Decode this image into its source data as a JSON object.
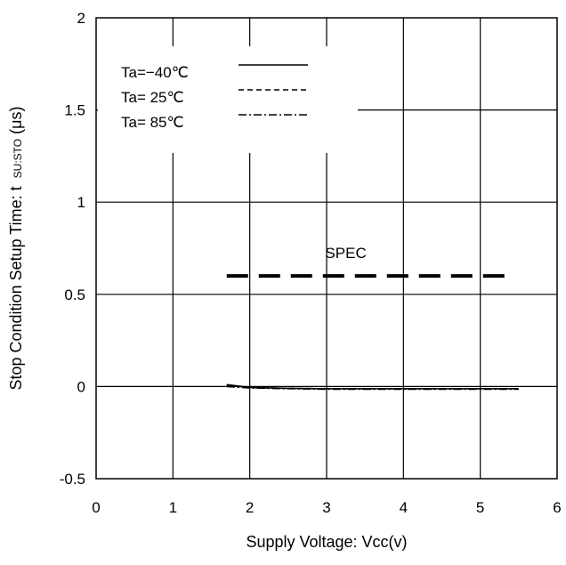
{
  "chart_data": {
    "type": "line",
    "xlabel": "Supply Voltage: Vcc(v)",
    "ylabel_main": "Stop Condition Setup Time: t",
    "ylabel_sub": "SU:STO",
    "ylabel_unit": "(μs)",
    "xlim": [
      0,
      6
    ],
    "ylim": [
      -0.5,
      2
    ],
    "xticks": [
      0,
      1,
      2,
      3,
      4,
      5,
      6
    ],
    "yticks": [
      -0.5,
      0,
      0.5,
      1,
      1.5,
      2
    ],
    "xtick_labels": [
      "0",
      "1",
      "2",
      "3",
      "4",
      "5",
      "6"
    ],
    "ytick_labels": [
      "-0.5",
      "0",
      "0.5",
      "1",
      "1.5",
      "2"
    ],
    "grid": true,
    "legend_position": "top-left",
    "series": [
      {
        "name": "Ta=−40℃",
        "dash": "solid",
        "x": [
          1.7,
          2.0,
          2.5,
          3.0,
          3.5,
          4.0,
          4.5,
          5.0,
          5.5
        ],
        "y": [
          0.01,
          -0.005,
          -0.01,
          -0.012,
          -0.012,
          -0.012,
          -0.012,
          -0.012,
          -0.012
        ]
      },
      {
        "name": "Ta= 25℃",
        "dash": "dashed",
        "x": [
          1.7,
          2.0,
          2.5,
          3.0,
          3.5,
          4.0,
          4.5,
          5.0,
          5.5
        ],
        "y": [
          0.005,
          -0.005,
          -0.01,
          -0.012,
          -0.012,
          -0.012,
          -0.012,
          -0.012,
          -0.012
        ]
      },
      {
        "name": "Ta= 85℃",
        "dash": "dashdot",
        "x": [
          1.7,
          2.0,
          2.5,
          3.0,
          3.5,
          4.0,
          4.5,
          5.0,
          5.5
        ],
        "y": [
          0.0,
          -0.008,
          -0.012,
          -0.015,
          -0.015,
          -0.015,
          -0.015,
          -0.015,
          -0.015
        ]
      }
    ],
    "spec_line": {
      "label": "SPEC",
      "x": [
        1.7,
        5.4
      ],
      "y": 0.6
    }
  }
}
